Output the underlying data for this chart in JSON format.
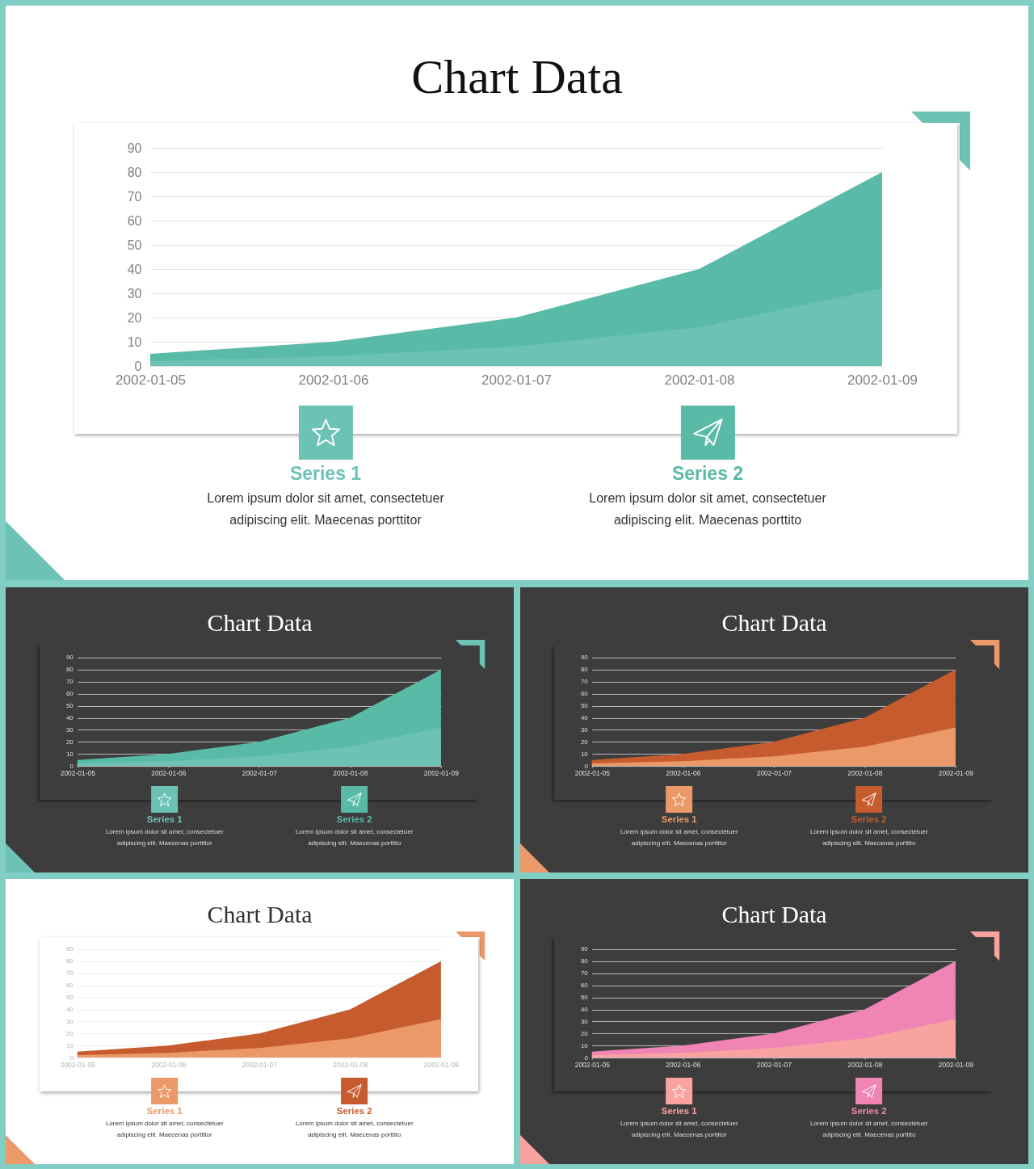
{
  "chart_data": [
    {
      "type": "area",
      "title": "Chart Data",
      "categories": [
        "2002-01-05",
        "2002-01-06",
        "2002-01-07",
        "2002-01-08",
        "2002-01-09"
      ],
      "series": [
        {
          "name": "Series 1",
          "color": "#6dc2b6",
          "values": [
            2,
            4,
            8,
            16,
            32
          ]
        },
        {
          "name": "Series 2",
          "color": "#59bba7",
          "values": [
            5,
            10,
            20,
            40,
            80
          ]
        }
      ],
      "ylim": [
        0,
        90
      ],
      "yticks": [
        0,
        10,
        20,
        30,
        40,
        50,
        60,
        70,
        80,
        90
      ],
      "grid": "y",
      "legend": "bottom",
      "annotations": [
        "Lorem ipsum dolor sit amet, consectetuer adipiscing elit. Maecenas porttitor",
        "Lorem ipsum dolor sit amet, consectetuer adipiscing elit. Maecenas porttito"
      ]
    },
    {
      "type": "area",
      "title": "Chart Data",
      "categories": [
        "2002-01-05",
        "2002-01-06",
        "2002-01-07",
        "2002-01-08",
        "2002-01-09"
      ],
      "series": [
        {
          "name": "Series 1",
          "color": "#6dc2b6",
          "values": [
            2,
            4,
            8,
            16,
            32
          ]
        },
        {
          "name": "Series 2",
          "color": "#59bba7",
          "values": [
            5,
            10,
            20,
            40,
            80
          ]
        }
      ],
      "ylim": [
        0,
        90
      ],
      "yticks": [
        0,
        10,
        20,
        30,
        40,
        50,
        60,
        70,
        80,
        90
      ],
      "grid": "y",
      "legend": "bottom",
      "annotations": [
        "Lorem ipsum dolor sit amet, consectetuer adipiscing elit. Maecenas porttitor",
        "Lorem ipsum dolor sit amet, consectetuer adipiscing elit. Maecenas porttito"
      ]
    },
    {
      "type": "area",
      "title": "Chart Data",
      "categories": [
        "2002-01-05",
        "2002-01-06",
        "2002-01-07",
        "2002-01-08",
        "2002-01-09"
      ],
      "series": [
        {
          "name": "Series 1",
          "color": "#eb9968",
          "values": [
            2,
            4,
            8,
            16,
            32
          ]
        },
        {
          "name": "Series 2",
          "color": "#c65c2e",
          "values": [
            5,
            10,
            20,
            40,
            80
          ]
        }
      ],
      "ylim": [
        0,
        90
      ],
      "yticks": [
        0,
        10,
        20,
        30,
        40,
        50,
        60,
        70,
        80,
        90
      ],
      "grid": "y",
      "legend": "bottom",
      "annotations": [
        "Lorem ipsum dolor sit amet, consectetuer adipiscing elit. Maecenas porttitor",
        "Lorem ipsum dolor sit amet, consectetuer adipiscing elit. Maecenas porttito"
      ]
    },
    {
      "type": "area",
      "title": "Chart Data",
      "categories": [
        "2002-01-05",
        "2002-01-06",
        "2002-01-07",
        "2002-01-08",
        "2002-01-09"
      ],
      "series": [
        {
          "name": "Series 1",
          "color": "#eb9968",
          "values": [
            2,
            4,
            8,
            16,
            32
          ]
        },
        {
          "name": "Series 2",
          "color": "#c65c2e",
          "values": [
            5,
            10,
            20,
            40,
            80
          ]
        }
      ],
      "ylim": [
        0,
        90
      ],
      "yticks": [
        0,
        10,
        20,
        30,
        40,
        50,
        60,
        70,
        80,
        90
      ],
      "grid": "y",
      "legend": "bottom",
      "annotations": [
        "Lorem ipsum dolor sit amet, consectetuer adipiscing elit. Maecenas porttitor",
        "Lorem ipsum dolor sit amet, consectetuer adipiscing elit. Maecenas porttito"
      ]
    },
    {
      "type": "area",
      "title": "Chart Data",
      "categories": [
        "2002-01-05",
        "2002-01-06",
        "2002-01-07",
        "2002-01-08",
        "2002-01-09"
      ],
      "series": [
        {
          "name": "Series 1",
          "color": "#f9a3a0",
          "values": [
            2,
            4,
            8,
            16,
            32
          ]
        },
        {
          "name": "Series 2",
          "color": "#ef84b5",
          "values": [
            5,
            10,
            20,
            40,
            80
          ]
        }
      ],
      "ylim": [
        0,
        90
      ],
      "yticks": [
        0,
        10,
        20,
        30,
        40,
        50,
        60,
        70,
        80,
        90
      ],
      "grid": "y",
      "legend": "bottom",
      "annotations": [
        "Lorem ipsum dolor sit amet, consectetuer adipiscing elit. Maecenas porttitor",
        "Lorem ipsum dolor sit amet, consectetuer adipiscing elit. Maecenas porttito"
      ]
    }
  ]
}
